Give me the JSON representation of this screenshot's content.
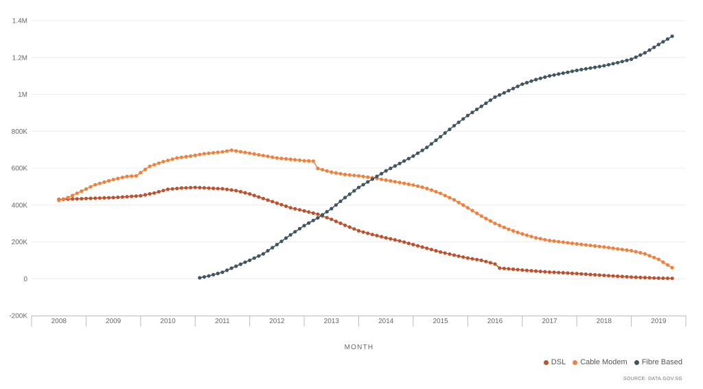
{
  "chart_data": {
    "type": "line",
    "xlabel": "MONTH",
    "ylabel": "",
    "ylim": [
      -200000,
      1400000
    ],
    "y_ticks": [
      -200000,
      0,
      200000,
      400000,
      600000,
      800000,
      1000000,
      1200000,
      1400000
    ],
    "y_tick_labels": [
      "-200K",
      "0",
      "200K",
      "400K",
      "600K",
      "800K",
      "1M",
      "1.2M",
      "1.4M"
    ],
    "x_categories": [
      "2008",
      "2009",
      "2010",
      "2011",
      "2012",
      "2013",
      "2014",
      "2015",
      "2016",
      "2017",
      "2018",
      "2019"
    ],
    "grid": true,
    "legend_position": "bottom-right",
    "source": "SOURCE: DATA.GOV.SG",
    "series": [
      {
        "name": "DSL",
        "color": "#c0502b",
        "points": [
          [
            "2008-01",
            430000
          ],
          [
            "2008-07",
            435000
          ],
          [
            "2009-01",
            440000
          ],
          [
            "2009-07",
            450000
          ],
          [
            "2009-10",
            465000
          ],
          [
            "2010-01",
            485000
          ],
          [
            "2010-04",
            492000
          ],
          [
            "2010-07",
            495000
          ],
          [
            "2011-01",
            488000
          ],
          [
            "2011-04",
            478000
          ],
          [
            "2011-07",
            460000
          ],
          [
            "2011-10",
            435000
          ],
          [
            "2012-01",
            410000
          ],
          [
            "2012-04",
            385000
          ],
          [
            "2012-07",
            368000
          ],
          [
            "2012-10",
            350000
          ],
          [
            "2013-01",
            322000
          ],
          [
            "2013-04",
            290000
          ],
          [
            "2013-07",
            260000
          ],
          [
            "2013-10",
            240000
          ],
          [
            "2014-01",
            222000
          ],
          [
            "2014-04",
            205000
          ],
          [
            "2014-07",
            185000
          ],
          [
            "2014-10",
            165000
          ],
          [
            "2015-01",
            145000
          ],
          [
            "2015-04",
            128000
          ],
          [
            "2015-07",
            112000
          ],
          [
            "2015-10",
            100000
          ],
          [
            "2016-01",
            80000
          ],
          [
            "2016-02",
            58000
          ],
          [
            "2016-07",
            47000
          ],
          [
            "2017-01",
            36000
          ],
          [
            "2017-07",
            28000
          ],
          [
            "2018-01",
            18000
          ],
          [
            "2018-07",
            9000
          ],
          [
            "2019-01",
            3000
          ],
          [
            "2019-04",
            2000
          ]
        ]
      },
      {
        "name": "Cable Modem",
        "color": "#f47f3b",
        "points": [
          [
            "2008-01",
            425000
          ],
          [
            "2008-03",
            440000
          ],
          [
            "2008-06",
            475000
          ],
          [
            "2008-09",
            510000
          ],
          [
            "2009-01",
            538000
          ],
          [
            "2009-04",
            555000
          ],
          [
            "2009-06",
            558000
          ],
          [
            "2009-07",
            575000
          ],
          [
            "2009-09",
            610000
          ],
          [
            "2009-12",
            635000
          ],
          [
            "2010-03",
            655000
          ],
          [
            "2010-06",
            665000
          ],
          [
            "2010-09",
            678000
          ],
          [
            "2011-01",
            688000
          ],
          [
            "2011-03",
            697000
          ],
          [
            "2011-06",
            685000
          ],
          [
            "2011-10",
            668000
          ],
          [
            "2012-01",
            655000
          ],
          [
            "2012-04",
            648000
          ],
          [
            "2012-07",
            640000
          ],
          [
            "2012-09",
            638000
          ],
          [
            "2012-10",
            598000
          ],
          [
            "2013-01",
            578000
          ],
          [
            "2013-04",
            565000
          ],
          [
            "2013-07",
            558000
          ],
          [
            "2013-10",
            548000
          ],
          [
            "2014-01",
            535000
          ],
          [
            "2014-04",
            522000
          ],
          [
            "2014-07",
            508000
          ],
          [
            "2014-10",
            490000
          ],
          [
            "2015-01",
            463000
          ],
          [
            "2015-04",
            428000
          ],
          [
            "2015-07",
            385000
          ],
          [
            "2015-10",
            340000
          ],
          [
            "2016-01",
            300000
          ],
          [
            "2016-04",
            268000
          ],
          [
            "2016-07",
            243000
          ],
          [
            "2016-10",
            222000
          ],
          [
            "2017-01",
            207000
          ],
          [
            "2017-07",
            189000
          ],
          [
            "2018-01",
            172000
          ],
          [
            "2018-07",
            152000
          ],
          [
            "2018-10",
            135000
          ],
          [
            "2019-01",
            105000
          ],
          [
            "2019-04",
            60000
          ]
        ]
      },
      {
        "name": "Fibre Based",
        "color": "#3f5560",
        "points": [
          [
            "2010-08",
            5000
          ],
          [
            "2010-10",
            15000
          ],
          [
            "2011-01",
            35000
          ],
          [
            "2011-04",
            68000
          ],
          [
            "2011-07",
            100000
          ],
          [
            "2011-10",
            135000
          ],
          [
            "2012-01",
            185000
          ],
          [
            "2012-04",
            238000
          ],
          [
            "2012-07",
            288000
          ],
          [
            "2012-10",
            330000
          ],
          [
            "2013-01",
            380000
          ],
          [
            "2013-04",
            440000
          ],
          [
            "2013-07",
            495000
          ],
          [
            "2013-10",
            540000
          ],
          [
            "2014-01",
            585000
          ],
          [
            "2014-04",
            625000
          ],
          [
            "2014-07",
            665000
          ],
          [
            "2014-10",
            712000
          ],
          [
            "2015-01",
            770000
          ],
          [
            "2015-04",
            830000
          ],
          [
            "2015-07",
            885000
          ],
          [
            "2015-10",
            935000
          ],
          [
            "2016-01",
            985000
          ],
          [
            "2016-04",
            1020000
          ],
          [
            "2016-07",
            1055000
          ],
          [
            "2016-10",
            1080000
          ],
          [
            "2017-01",
            1100000
          ],
          [
            "2017-07",
            1130000
          ],
          [
            "2018-01",
            1155000
          ],
          [
            "2018-04",
            1172000
          ],
          [
            "2018-07",
            1190000
          ],
          [
            "2018-10",
            1225000
          ],
          [
            "2019-01",
            1270000
          ],
          [
            "2019-04",
            1315000
          ]
        ]
      }
    ]
  }
}
